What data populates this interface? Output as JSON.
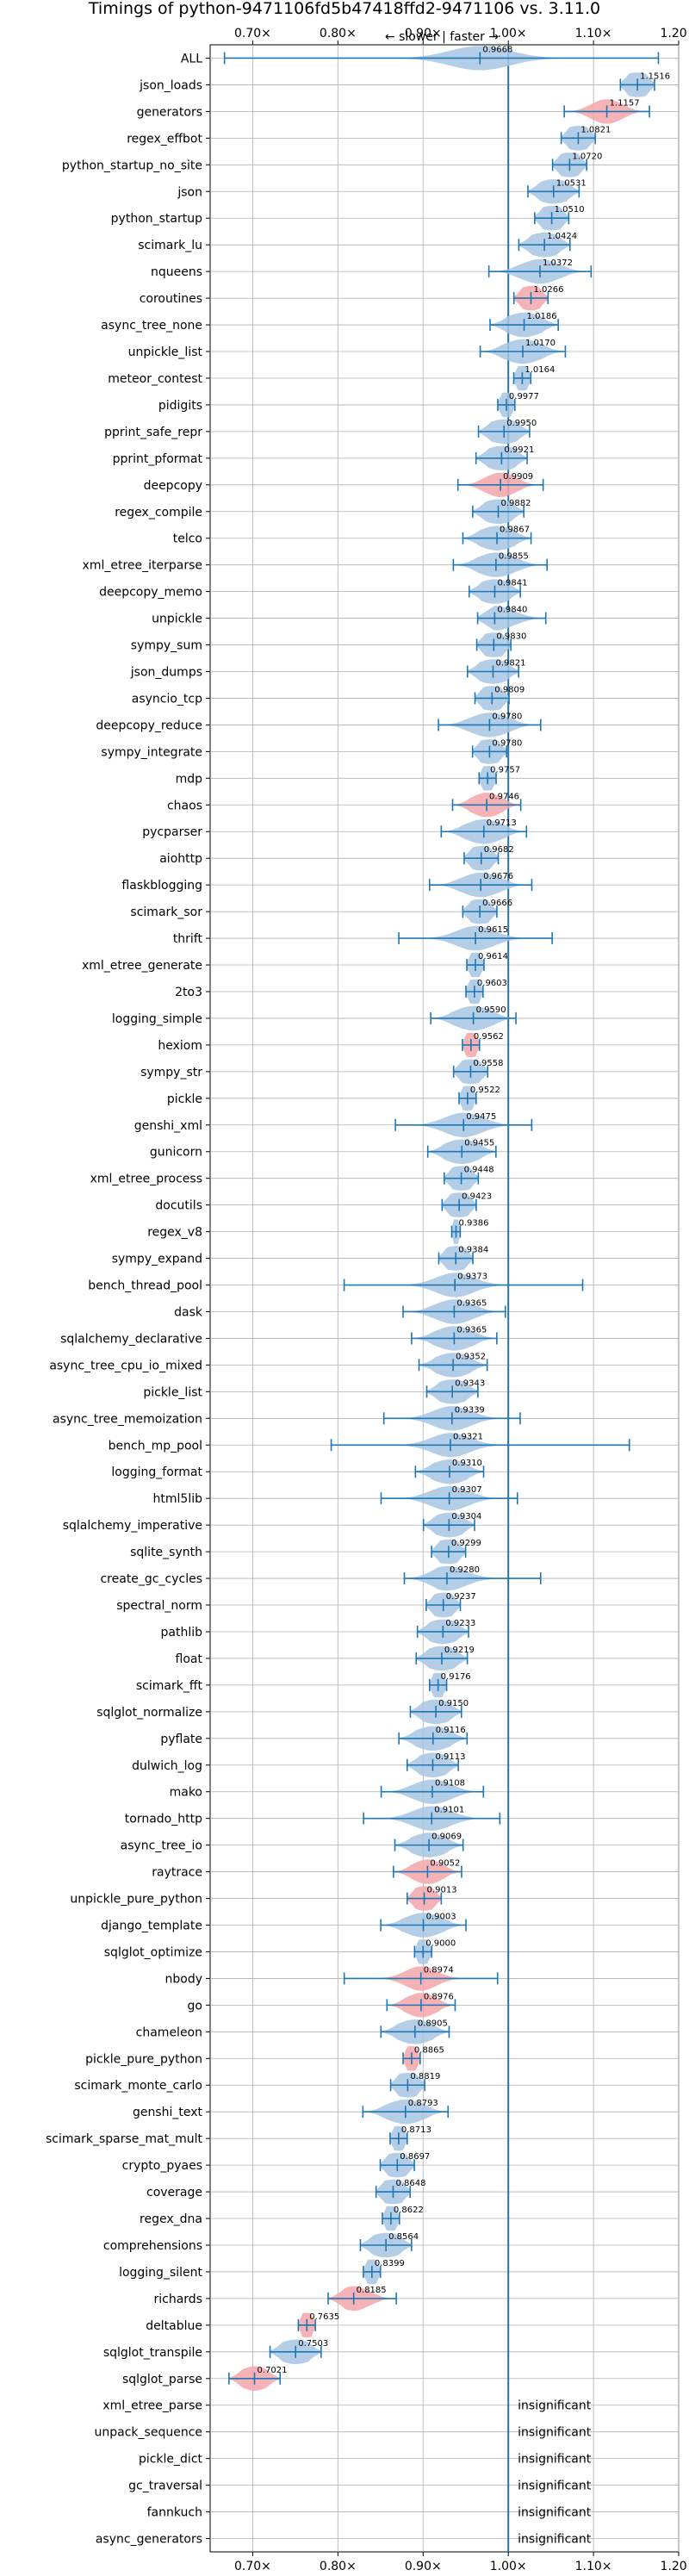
{
  "chart_data": {
    "type": "violin",
    "title": "Timings of python-9471106fd5b47418ffd2-9471106 vs. 3.11.0",
    "direction_label": "← slower | faster →",
    "xlim": [
      0.65,
      1.2
    ],
    "x_ticks": [
      0.7,
      0.8,
      0.9,
      1.0,
      1.1,
      1.2
    ],
    "x_tick_labels": [
      "0.70×",
      "0.80×",
      "0.90×",
      "1.00×",
      "1.10×",
      "1.20×"
    ],
    "reference_line": 1.0,
    "grid": true,
    "colors": {
      "normal": "#a7c6e3",
      "slower": "#f4a6aa",
      "line": "#1f77b4",
      "grid": "#b0b0b0"
    },
    "insignificant_label": "insignificant",
    "benchmarks": [
      {
        "name": "ALL",
        "value": 0.9668,
        "min": 0.6668,
        "max": 1.1762,
        "width": 0.035,
        "color": "normal"
      },
      {
        "name": "json_loads",
        "value": 1.1516,
        "min": 1.1316,
        "max": 1.1716,
        "width": 0.022,
        "color": "normal"
      },
      {
        "name": "generators",
        "value": 1.1157,
        "min": 1.0657,
        "max": 1.1657,
        "width": 0.018,
        "color": "slower"
      },
      {
        "name": "regex_effbot",
        "value": 1.0821,
        "min": 1.0621,
        "max": 1.1021,
        "width": 0.022,
        "color": "normal"
      },
      {
        "name": "python_startup_no_site",
        "value": 1.072,
        "min": 1.052,
        "max": 1.092,
        "width": 0.022,
        "color": "normal"
      },
      {
        "name": "json",
        "value": 1.0531,
        "min": 1.0231,
        "max": 1.0831,
        "width": 0.022,
        "color": "normal"
      },
      {
        "name": "python_startup",
        "value": 1.051,
        "min": 1.031,
        "max": 1.071,
        "width": 0.022,
        "color": "normal"
      },
      {
        "name": "scimark_lu",
        "value": 1.0424,
        "min": 1.0124,
        "max": 1.0724,
        "width": 0.022,
        "color": "normal"
      },
      {
        "name": "nqueens",
        "value": 1.0372,
        "min": 0.9772,
        "max": 1.0972,
        "width": 0.022,
        "color": "normal"
      },
      {
        "name": "coroutines",
        "value": 1.0266,
        "min": 1.0066,
        "max": 1.0466,
        "width": 0.018,
        "color": "slower"
      },
      {
        "name": "async_tree_none",
        "value": 1.0186,
        "min": 0.9786,
        "max": 1.0586,
        "width": 0.022,
        "color": "normal"
      },
      {
        "name": "unpickle_list",
        "value": 1.017,
        "min": 0.967,
        "max": 1.067,
        "width": 0.022,
        "color": "normal"
      },
      {
        "name": "meteor_contest",
        "value": 1.0164,
        "min": 1.0064,
        "max": 1.0264,
        "width": 0.022,
        "color": "normal"
      },
      {
        "name": "pidigits",
        "value": 0.9977,
        "min": 0.9877,
        "max": 1.0077,
        "width": 0.022,
        "color": "normal"
      },
      {
        "name": "pprint_safe_repr",
        "value": 0.995,
        "min": 0.965,
        "max": 1.025,
        "width": 0.022,
        "color": "normal"
      },
      {
        "name": "pprint_pformat",
        "value": 0.9921,
        "min": 0.9621,
        "max": 1.0221,
        "width": 0.022,
        "color": "normal"
      },
      {
        "name": "deepcopy",
        "value": 0.9909,
        "min": 0.9409,
        "max": 1.0409,
        "width": 0.018,
        "color": "slower"
      },
      {
        "name": "regex_compile",
        "value": 0.9882,
        "min": 0.9582,
        "max": 1.0182,
        "width": 0.022,
        "color": "normal"
      },
      {
        "name": "telco",
        "value": 0.9867,
        "min": 0.9467,
        "max": 1.0267,
        "width": 0.022,
        "color": "normal"
      },
      {
        "name": "xml_etree_iterparse",
        "value": 0.9855,
        "min": 0.9355,
        "max": 1.0455,
        "width": 0.022,
        "color": "normal"
      },
      {
        "name": "deepcopy_memo",
        "value": 0.9841,
        "min": 0.9541,
        "max": 1.0141,
        "width": 0.022,
        "color": "normal"
      },
      {
        "name": "unpickle",
        "value": 0.984,
        "min": 0.964,
        "max": 1.044,
        "width": 0.022,
        "color": "normal"
      },
      {
        "name": "sympy_sum",
        "value": 0.983,
        "min": 0.963,
        "max": 1.003,
        "width": 0.022,
        "color": "normal"
      },
      {
        "name": "json_dumps",
        "value": 0.9821,
        "min": 0.9521,
        "max": 1.0121,
        "width": 0.022,
        "color": "normal"
      },
      {
        "name": "asyncio_tcp",
        "value": 0.9809,
        "min": 0.9609,
        "max": 1.0009,
        "width": 0.022,
        "color": "normal"
      },
      {
        "name": "deepcopy_reduce",
        "value": 0.978,
        "min": 0.918,
        "max": 1.038,
        "width": 0.022,
        "color": "normal"
      },
      {
        "name": "sympy_integrate",
        "value": 0.978,
        "min": 0.958,
        "max": 0.998,
        "width": 0.022,
        "color": "normal"
      },
      {
        "name": "mdp",
        "value": 0.9757,
        "min": 0.9657,
        "max": 0.9857,
        "width": 0.022,
        "color": "normal"
      },
      {
        "name": "chaos",
        "value": 0.9746,
        "min": 0.9346,
        "max": 1.0146,
        "width": 0.018,
        "color": "slower"
      },
      {
        "name": "pycparser",
        "value": 0.9713,
        "min": 0.9213,
        "max": 1.0213,
        "width": 0.022,
        "color": "normal"
      },
      {
        "name": "aiohttp",
        "value": 0.9682,
        "min": 0.9482,
        "max": 0.9882,
        "width": 0.022,
        "color": "normal"
      },
      {
        "name": "flaskblogging",
        "value": 0.9676,
        "min": 0.9076,
        "max": 1.0276,
        "width": 0.022,
        "color": "normal"
      },
      {
        "name": "scimark_sor",
        "value": 0.9666,
        "min": 0.9466,
        "max": 0.9866,
        "width": 0.022,
        "color": "normal"
      },
      {
        "name": "thrift",
        "value": 0.9615,
        "min": 0.8715,
        "max": 1.0515,
        "width": 0.022,
        "color": "normal"
      },
      {
        "name": "xml_etree_generate",
        "value": 0.9614,
        "min": 0.9514,
        "max": 0.9714,
        "width": 0.022,
        "color": "normal"
      },
      {
        "name": "2to3",
        "value": 0.9603,
        "min": 0.9503,
        "max": 0.9703,
        "width": 0.022,
        "color": "normal"
      },
      {
        "name": "logging_simple",
        "value": 0.959,
        "min": 0.909,
        "max": 1.009,
        "width": 0.022,
        "color": "normal"
      },
      {
        "name": "hexiom",
        "value": 0.9562,
        "min": 0.9462,
        "max": 0.9662,
        "width": 0.018,
        "color": "slower"
      },
      {
        "name": "sympy_str",
        "value": 0.9558,
        "min": 0.9358,
        "max": 0.9758,
        "width": 0.022,
        "color": "normal"
      },
      {
        "name": "pickle",
        "value": 0.9522,
        "min": 0.9422,
        "max": 0.9622,
        "width": 0.022,
        "color": "normal"
      },
      {
        "name": "genshi_xml",
        "value": 0.9475,
        "min": 0.8675,
        "max": 1.0275,
        "width": 0.022,
        "color": "normal"
      },
      {
        "name": "gunicorn",
        "value": 0.9455,
        "min": 0.9055,
        "max": 0.9855,
        "width": 0.022,
        "color": "normal"
      },
      {
        "name": "xml_etree_process",
        "value": 0.9448,
        "min": 0.9248,
        "max": 0.9648,
        "width": 0.022,
        "color": "normal"
      },
      {
        "name": "docutils",
        "value": 0.9423,
        "min": 0.9223,
        "max": 0.9623,
        "width": 0.022,
        "color": "normal"
      },
      {
        "name": "regex_v8",
        "value": 0.9386,
        "min": 0.9336,
        "max": 0.9436,
        "width": 0.022,
        "color": "normal"
      },
      {
        "name": "sympy_expand",
        "value": 0.9384,
        "min": 0.9184,
        "max": 0.9584,
        "width": 0.022,
        "color": "normal"
      },
      {
        "name": "bench_thread_pool",
        "value": 0.9373,
        "min": 0.8073,
        "max": 1.0873,
        "width": 0.022,
        "color": "normal"
      },
      {
        "name": "dask",
        "value": 0.9365,
        "min": 0.8765,
        "max": 0.9965,
        "width": 0.022,
        "color": "normal"
      },
      {
        "name": "sqlalchemy_declarative",
        "value": 0.9365,
        "min": 0.8865,
        "max": 0.9865,
        "width": 0.022,
        "color": "normal"
      },
      {
        "name": "async_tree_cpu_io_mixed",
        "value": 0.9352,
        "min": 0.8952,
        "max": 0.9752,
        "width": 0.022,
        "color": "normal"
      },
      {
        "name": "pickle_list",
        "value": 0.9343,
        "min": 0.9043,
        "max": 0.9643,
        "width": 0.022,
        "color": "normal"
      },
      {
        "name": "async_tree_memoization",
        "value": 0.9339,
        "min": 0.8539,
        "max": 1.0139,
        "width": 0.022,
        "color": "normal"
      },
      {
        "name": "bench_mp_pool",
        "value": 0.9321,
        "min": 0.7921,
        "max": 1.1421,
        "width": 0.022,
        "color": "normal"
      },
      {
        "name": "logging_format",
        "value": 0.931,
        "min": 0.891,
        "max": 0.971,
        "width": 0.022,
        "color": "normal"
      },
      {
        "name": "html5lib",
        "value": 0.9307,
        "min": 0.8507,
        "max": 1.0107,
        "width": 0.022,
        "color": "normal"
      },
      {
        "name": "sqlalchemy_imperative",
        "value": 0.9304,
        "min": 0.9004,
        "max": 0.9604,
        "width": 0.022,
        "color": "normal"
      },
      {
        "name": "sqlite_synth",
        "value": 0.9299,
        "min": 0.9099,
        "max": 0.9499,
        "width": 0.022,
        "color": "normal"
      },
      {
        "name": "create_gc_cycles",
        "value": 0.928,
        "min": 0.878,
        "max": 1.038,
        "width": 0.022,
        "color": "normal"
      },
      {
        "name": "spectral_norm",
        "value": 0.9237,
        "min": 0.9037,
        "max": 0.9437,
        "width": 0.022,
        "color": "normal"
      },
      {
        "name": "pathlib",
        "value": 0.9233,
        "min": 0.8933,
        "max": 0.9533,
        "width": 0.022,
        "color": "normal"
      },
      {
        "name": "float",
        "value": 0.9219,
        "min": 0.8919,
        "max": 0.9519,
        "width": 0.022,
        "color": "normal"
      },
      {
        "name": "scimark_fft",
        "value": 0.9176,
        "min": 0.9076,
        "max": 0.9276,
        "width": 0.022,
        "color": "normal"
      },
      {
        "name": "sqlglot_normalize",
        "value": 0.915,
        "min": 0.885,
        "max": 0.945,
        "width": 0.022,
        "color": "normal"
      },
      {
        "name": "pyflate",
        "value": 0.9116,
        "min": 0.8716,
        "max": 0.9516,
        "width": 0.022,
        "color": "normal"
      },
      {
        "name": "dulwich_log",
        "value": 0.9113,
        "min": 0.8813,
        "max": 0.9413,
        "width": 0.022,
        "color": "normal"
      },
      {
        "name": "mako",
        "value": 0.9108,
        "min": 0.8508,
        "max": 0.9708,
        "width": 0.022,
        "color": "normal"
      },
      {
        "name": "tornado_http",
        "value": 0.9101,
        "min": 0.8301,
        "max": 0.9901,
        "width": 0.022,
        "color": "normal"
      },
      {
        "name": "async_tree_io",
        "value": 0.9069,
        "min": 0.8669,
        "max": 0.9469,
        "width": 0.022,
        "color": "normal"
      },
      {
        "name": "raytrace",
        "value": 0.9052,
        "min": 0.8652,
        "max": 0.9452,
        "width": 0.018,
        "color": "slower"
      },
      {
        "name": "unpickle_pure_python",
        "value": 0.9013,
        "min": 0.8813,
        "max": 0.9213,
        "width": 0.018,
        "color": "slower"
      },
      {
        "name": "django_template",
        "value": 0.9003,
        "min": 0.8503,
        "max": 0.9503,
        "width": 0.022,
        "color": "normal"
      },
      {
        "name": "sqlglot_optimize",
        "value": 0.9,
        "min": 0.89,
        "max": 0.91,
        "width": 0.022,
        "color": "normal"
      },
      {
        "name": "nbody",
        "value": 0.8974,
        "min": 0.8074,
        "max": 0.9874,
        "width": 0.018,
        "color": "slower"
      },
      {
        "name": "go",
        "value": 0.8976,
        "min": 0.8576,
        "max": 0.9376,
        "width": 0.018,
        "color": "slower"
      },
      {
        "name": "chameleon",
        "value": 0.8905,
        "min": 0.8505,
        "max": 0.9305,
        "width": 0.022,
        "color": "normal"
      },
      {
        "name": "pickle_pure_python",
        "value": 0.8865,
        "min": 0.8765,
        "max": 0.8965,
        "width": 0.018,
        "color": "slower"
      },
      {
        "name": "scimark_monte_carlo",
        "value": 0.8819,
        "min": 0.8619,
        "max": 0.9019,
        "width": 0.022,
        "color": "normal"
      },
      {
        "name": "genshi_text",
        "value": 0.8793,
        "min": 0.8293,
        "max": 0.9293,
        "width": 0.022,
        "color": "normal"
      },
      {
        "name": "scimark_sparse_mat_mult",
        "value": 0.8713,
        "min": 0.8613,
        "max": 0.8813,
        "width": 0.022,
        "color": "normal"
      },
      {
        "name": "crypto_pyaes",
        "value": 0.8697,
        "min": 0.8497,
        "max": 0.8897,
        "width": 0.022,
        "color": "normal"
      },
      {
        "name": "coverage",
        "value": 0.8648,
        "min": 0.8448,
        "max": 0.8848,
        "width": 0.022,
        "color": "normal"
      },
      {
        "name": "regex_dna",
        "value": 0.8622,
        "min": 0.8522,
        "max": 0.8722,
        "width": 0.022,
        "color": "normal"
      },
      {
        "name": "comprehensions",
        "value": 0.8564,
        "min": 0.8264,
        "max": 0.8864,
        "width": 0.022,
        "color": "normal"
      },
      {
        "name": "logging_silent",
        "value": 0.8399,
        "min": 0.8299,
        "max": 0.8499,
        "width": 0.022,
        "color": "normal"
      },
      {
        "name": "richards",
        "value": 0.8185,
        "min": 0.7885,
        "max": 0.8685,
        "width": 0.018,
        "color": "slower"
      },
      {
        "name": "deltablue",
        "value": 0.7635,
        "min": 0.7535,
        "max": 0.7735,
        "width": 0.018,
        "color": "slower"
      },
      {
        "name": "sqlglot_transpile",
        "value": 0.7503,
        "min": 0.7203,
        "max": 0.7803,
        "width": 0.022,
        "color": "normal"
      },
      {
        "name": "sqlglot_parse",
        "value": 0.7021,
        "min": 0.6721,
        "max": 0.7321,
        "width": 0.018,
        "color": "slower"
      },
      {
        "name": "xml_etree_parse",
        "insignificant": true
      },
      {
        "name": "unpack_sequence",
        "insignificant": true
      },
      {
        "name": "pickle_dict",
        "insignificant": true
      },
      {
        "name": "gc_traversal",
        "insignificant": true
      },
      {
        "name": "fannkuch",
        "insignificant": true
      },
      {
        "name": "async_generators",
        "insignificant": true
      }
    ]
  }
}
